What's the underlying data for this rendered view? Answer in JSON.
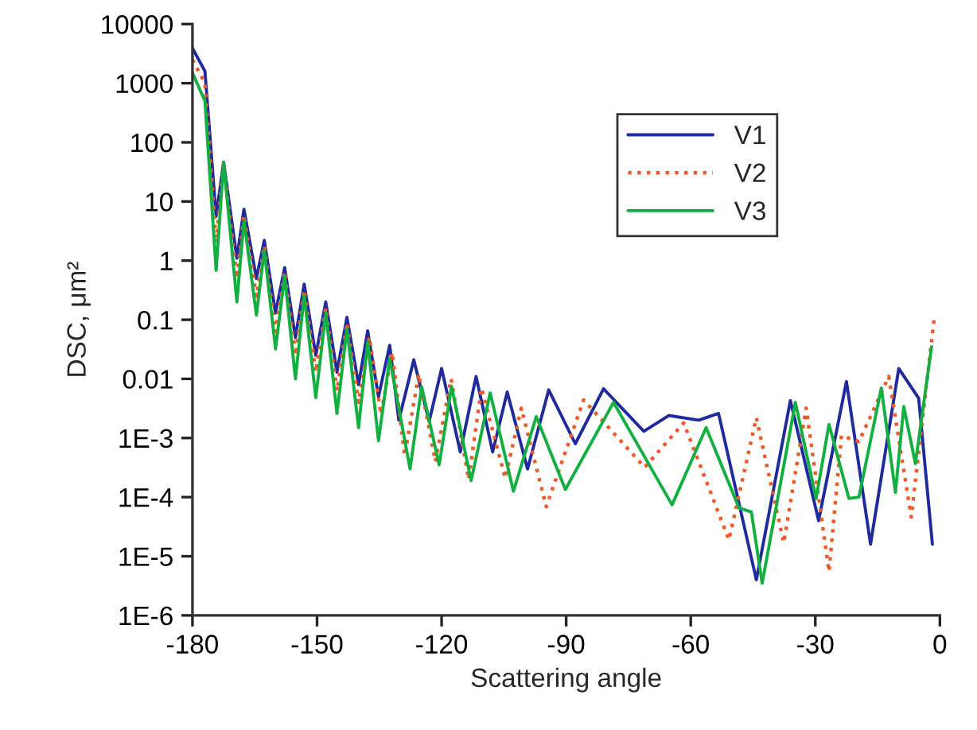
{
  "chart_data": {
    "type": "line",
    "xlabel": "Scattering angle",
    "ylabel": "DSC, μm²",
    "xlim": [
      -180,
      0
    ],
    "xticks": [
      -180,
      -150,
      -120,
      -90,
      -60,
      -30,
      0
    ],
    "ylim": [
      1e-06,
      10000
    ],
    "log": true,
    "yticks": [
      {
        "value": 1e-06,
        "label": "1E-6"
      },
      {
        "value": 1e-05,
        "label": "1E-5"
      },
      {
        "value": 0.0001,
        "label": "1E-4"
      },
      {
        "value": 0.001,
        "label": "1E-3"
      },
      0.01,
      0.1,
      1,
      10,
      100,
      1000,
      10000
    ],
    "grid": false,
    "legend": "top right",
    "series": [
      {
        "name": "V1",
        "color": "#1f2a9e",
        "line_style": "solid",
        "x": [
          -180,
          -177,
          -174.3,
          -172.5,
          -169.3,
          -167.6,
          -164.6,
          -162.7,
          -160,
          -157.8,
          -155.2,
          -153.1,
          -150.3,
          -147.9,
          -145.2,
          -142.8,
          -140,
          -137.8,
          -135.2,
          -132.5,
          -130.3,
          -126.7,
          -123,
          -120,
          -115.5,
          -111.7,
          -107.7,
          -104.2,
          -99.3,
          -94.2,
          -87.8,
          -81,
          -71.3,
          -65.3,
          -58.1,
          -53.3,
          -44.2,
          -36,
          -29.2,
          -22.5,
          -16.7,
          -9.9,
          -5.1,
          -1.8
        ],
        "values": [
          3900,
          1600,
          5.6,
          46,
          1.1,
          7.4,
          0.5,
          2.2,
          0.13,
          0.76,
          0.05,
          0.4,
          0.025,
          0.2,
          0.013,
          0.11,
          0.008,
          0.065,
          0.005,
          0.037,
          0.002,
          0.021,
          0.0019,
          0.015,
          0.00058,
          0.011,
          0.00058,
          0.006,
          0.0003,
          0.0065,
          0.0008,
          0.0068,
          0.0013,
          0.0024,
          0.002,
          0.0026,
          4e-06,
          0.0043,
          4e-05,
          0.009,
          1.6e-05,
          0.015,
          0.0047,
          1.6e-05
        ]
      },
      {
        "name": "V2",
        "color": "#f05a28",
        "line_style": "dotted",
        "x": [
          -180,
          -177,
          -174.3,
          -172.5,
          -169.3,
          -167.6,
          -164.6,
          -162.7,
          -160,
          -157.8,
          -155.2,
          -153.1,
          -150.3,
          -147.9,
          -145.2,
          -142.8,
          -140,
          -137.4,
          -134.6,
          -131.9,
          -128.9,
          -125.5,
          -121.5,
          -117.7,
          -113.5,
          -110.4,
          -104.7,
          -100.8,
          -94.8,
          -85.8,
          -71.1,
          -61.7,
          -50.8,
          -44.2,
          -37.6,
          -32.2,
          -26.7,
          -23.7,
          -19.5,
          -12.3,
          -6.9,
          -1.4
        ],
        "values": [
          2500,
          1000,
          2,
          44,
          0.5,
          5.9,
          0.25,
          1.8,
          0.063,
          0.65,
          0.025,
          0.32,
          0.013,
          0.16,
          0.0063,
          0.089,
          0.004,
          0.051,
          0.0025,
          0.028,
          0.0005,
          0.012,
          0.0004,
          0.01,
          0.0002,
          0.007,
          0.00021,
          0.0032,
          6.9e-05,
          0.0044,
          0.00032,
          0.0018,
          1.9e-05,
          0.0022,
          1.7e-05,
          0.0032,
          5.5e-06,
          0.0011,
          0.00087,
          0.011,
          4.6e-05,
          0.1
        ]
      },
      {
        "name": "V3",
        "color": "#12b040",
        "line_style": "solid",
        "x": [
          -180,
          -177,
          -174.3,
          -172.5,
          -169.3,
          -167.6,
          -164.6,
          -162.7,
          -160,
          -157.8,
          -155.2,
          -153.1,
          -150.3,
          -147.9,
          -145.2,
          -142.8,
          -140,
          -137.8,
          -135.2,
          -132.5,
          -127.6,
          -124.8,
          -120.6,
          -117.6,
          -112.9,
          -108.3,
          -102.7,
          -97.2,
          -90.2,
          -78.6,
          -64.5,
          -56.3,
          -48.4,
          -45.4,
          -42.8,
          -34.8,
          -29.8,
          -26.7,
          -21.9,
          -19.5,
          -14.1,
          -10.7,
          -8.7,
          -5.9,
          -2.0
        ],
        "values": [
          1500,
          500,
          0.68,
          46,
          0.2,
          4.8,
          0.12,
          1.5,
          0.032,
          0.55,
          0.01,
          0.26,
          0.0048,
          0.13,
          0.0026,
          0.07,
          0.0015,
          0.042,
          0.0009,
          0.022,
          0.0003,
          0.0074,
          0.00035,
          0.0074,
          0.00019,
          0.0058,
          0.000126,
          0.0023,
          0.000135,
          0.004,
          7.4e-05,
          0.0015,
          6.6e-05,
          5.6e-05,
          3.5e-06,
          0.004,
          9.5e-05,
          0.0017,
          9.5e-05,
          0.0001,
          0.007,
          0.00012,
          0.0034,
          0.00037,
          0.035
        ]
      }
    ]
  }
}
